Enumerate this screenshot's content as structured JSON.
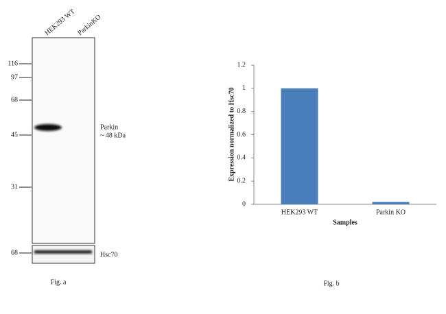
{
  "blot": {
    "lanes": [
      "HEK293 WT",
      "ParkinKO"
    ],
    "markers": [
      116,
      97,
      68,
      45,
      31
    ],
    "band_label": "Parkin",
    "band_size": "~ 48 kDa",
    "control_marker": 68,
    "control_label": "Hsc70",
    "caption": "Fig. a"
  },
  "chart_data": {
    "type": "bar",
    "y_label": "Expression normalized to Hsc70",
    "x_label": "Samples",
    "categories": [
      "HEK293 WT",
      "Parkin KO"
    ],
    "values": [
      1,
      0.02
    ],
    "color": "#4a7ebb",
    "ylim": [
      0,
      1.2
    ],
    "yticks": [
      0,
      0.2,
      0.4,
      0.6,
      0.8,
      1,
      1.2
    ],
    "grid": false,
    "caption": "Fig. b"
  }
}
